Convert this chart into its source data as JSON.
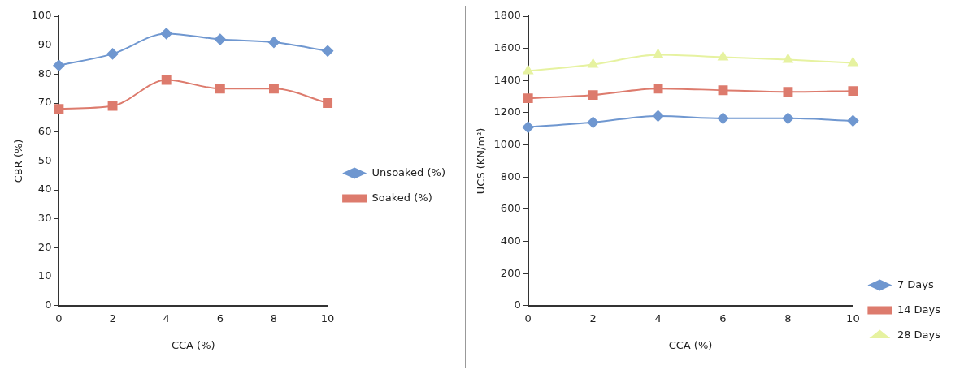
{
  "chart_data": [
    {
      "type": "line",
      "xlabel": "CCA (%)",
      "ylabel": "CBR (%)",
      "categories": [
        "0",
        "2",
        "4",
        "6",
        "8",
        "10"
      ],
      "ylim": [
        0,
        100
      ],
      "yticks": [
        0,
        10,
        20,
        30,
        40,
        50,
        60,
        70,
        80,
        90,
        100
      ],
      "grid": false,
      "legend": "right",
      "series": [
        {
          "name": "Unsoaked (%)",
          "color": "#6f97d0",
          "marker": "diamond",
          "values": [
            83,
            87,
            94,
            92,
            91,
            88
          ]
        },
        {
          "name": "Soaked (%)",
          "color": "#dd7b6d",
          "marker": "square",
          "values": [
            68,
            69,
            78,
            75,
            75,
            70
          ]
        }
      ]
    },
    {
      "type": "line",
      "xlabel": "CCA (%)",
      "ylabel": "UCS (KN/m²)",
      "categories": [
        "0",
        "2",
        "4",
        "6",
        "8",
        "10"
      ],
      "ylim": [
        0,
        1800
      ],
      "yticks": [
        0,
        200,
        400,
        600,
        800,
        1000,
        1200,
        1400,
        1600,
        1800
      ],
      "grid": false,
      "legend": "bottom right",
      "series": [
        {
          "name": "7 Days",
          "color": "#6f97d0",
          "marker": "diamond",
          "values": [
            1110,
            1140,
            1180,
            1165,
            1165,
            1150
          ]
        },
        {
          "name": "14 Days",
          "color": "#dd7b6d",
          "marker": "square",
          "values": [
            1290,
            1310,
            1350,
            1340,
            1330,
            1335
          ]
        },
        {
          "name": "28 Days",
          "color": "#e6f2a0",
          "marker": "triangle",
          "values": [
            1460,
            1500,
            1560,
            1545,
            1530,
            1510
          ]
        }
      ]
    }
  ]
}
